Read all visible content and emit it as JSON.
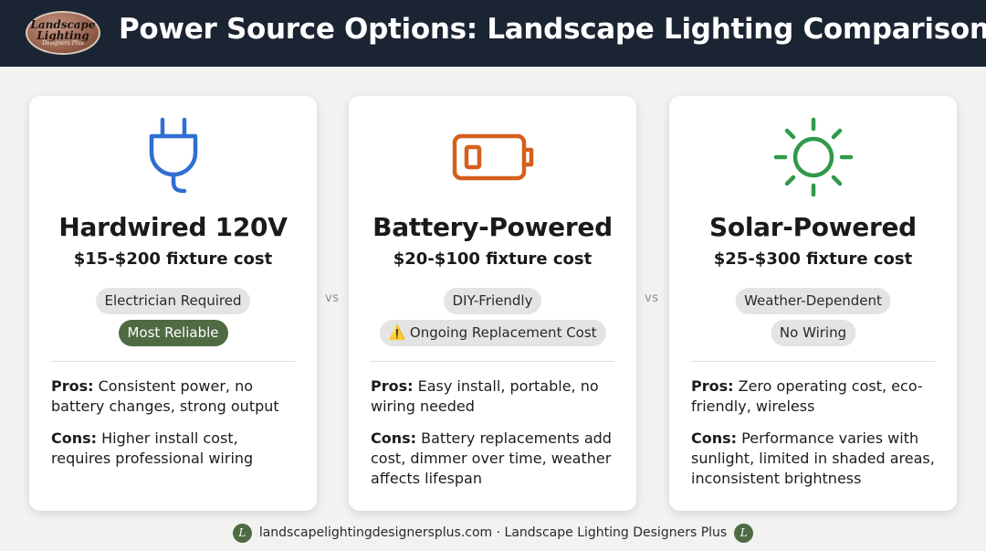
{
  "header": {
    "title": "Power Source Options: Landscape Lighting Comparison",
    "logo": {
      "line1": "Landscape",
      "line2": "Lighting",
      "line3": "Designers Plus"
    }
  },
  "colors": {
    "header_bg": "#1b2433",
    "plug_icon": "#2f6fd1",
    "battery_icon": "#d4601c",
    "sun_icon": "#2f9a4a",
    "green_badge": "#4e6b43"
  },
  "separator": "vs",
  "cards": [
    {
      "icon": "plug-icon",
      "title": "Hardwired 120V",
      "cost": "$15-$200 fixture cost",
      "badges": [
        "Electrician Required",
        "Most Reliable"
      ],
      "pros_label": "Pros:",
      "pros": "Consistent power, no battery changes, strong output",
      "cons_label": "Cons:",
      "cons": "Higher install cost, requires professional wiring"
    },
    {
      "icon": "battery-icon",
      "title": "Battery-Powered",
      "cost": "$20-$100 fixture cost",
      "badges": [
        "DIY-Friendly",
        "Ongoing Replacement Cost"
      ],
      "warning_icon": "warning-icon",
      "pros_label": "Pros:",
      "pros": "Easy install, portable, no wiring needed",
      "cons_label": "Cons:",
      "cons": "Battery replacements add cost, dimmer over time, weather affects lifespan"
    },
    {
      "icon": "sun-icon",
      "title": "Solar-Powered",
      "cost": "$25-$300 fixture cost",
      "badges": [
        "Weather-Dependent",
        "No Wiring"
      ],
      "pros_label": "Pros:",
      "pros": "Zero operating cost, eco-friendly, wireless",
      "cons_label": "Cons:",
      "cons": "Performance varies with sunlight, limited in shaded areas, inconsistent brightness"
    }
  ],
  "footer": {
    "text": "landscapelightingdesignersplus.com · Landscape Lighting Designers Plus",
    "mark": "L"
  }
}
